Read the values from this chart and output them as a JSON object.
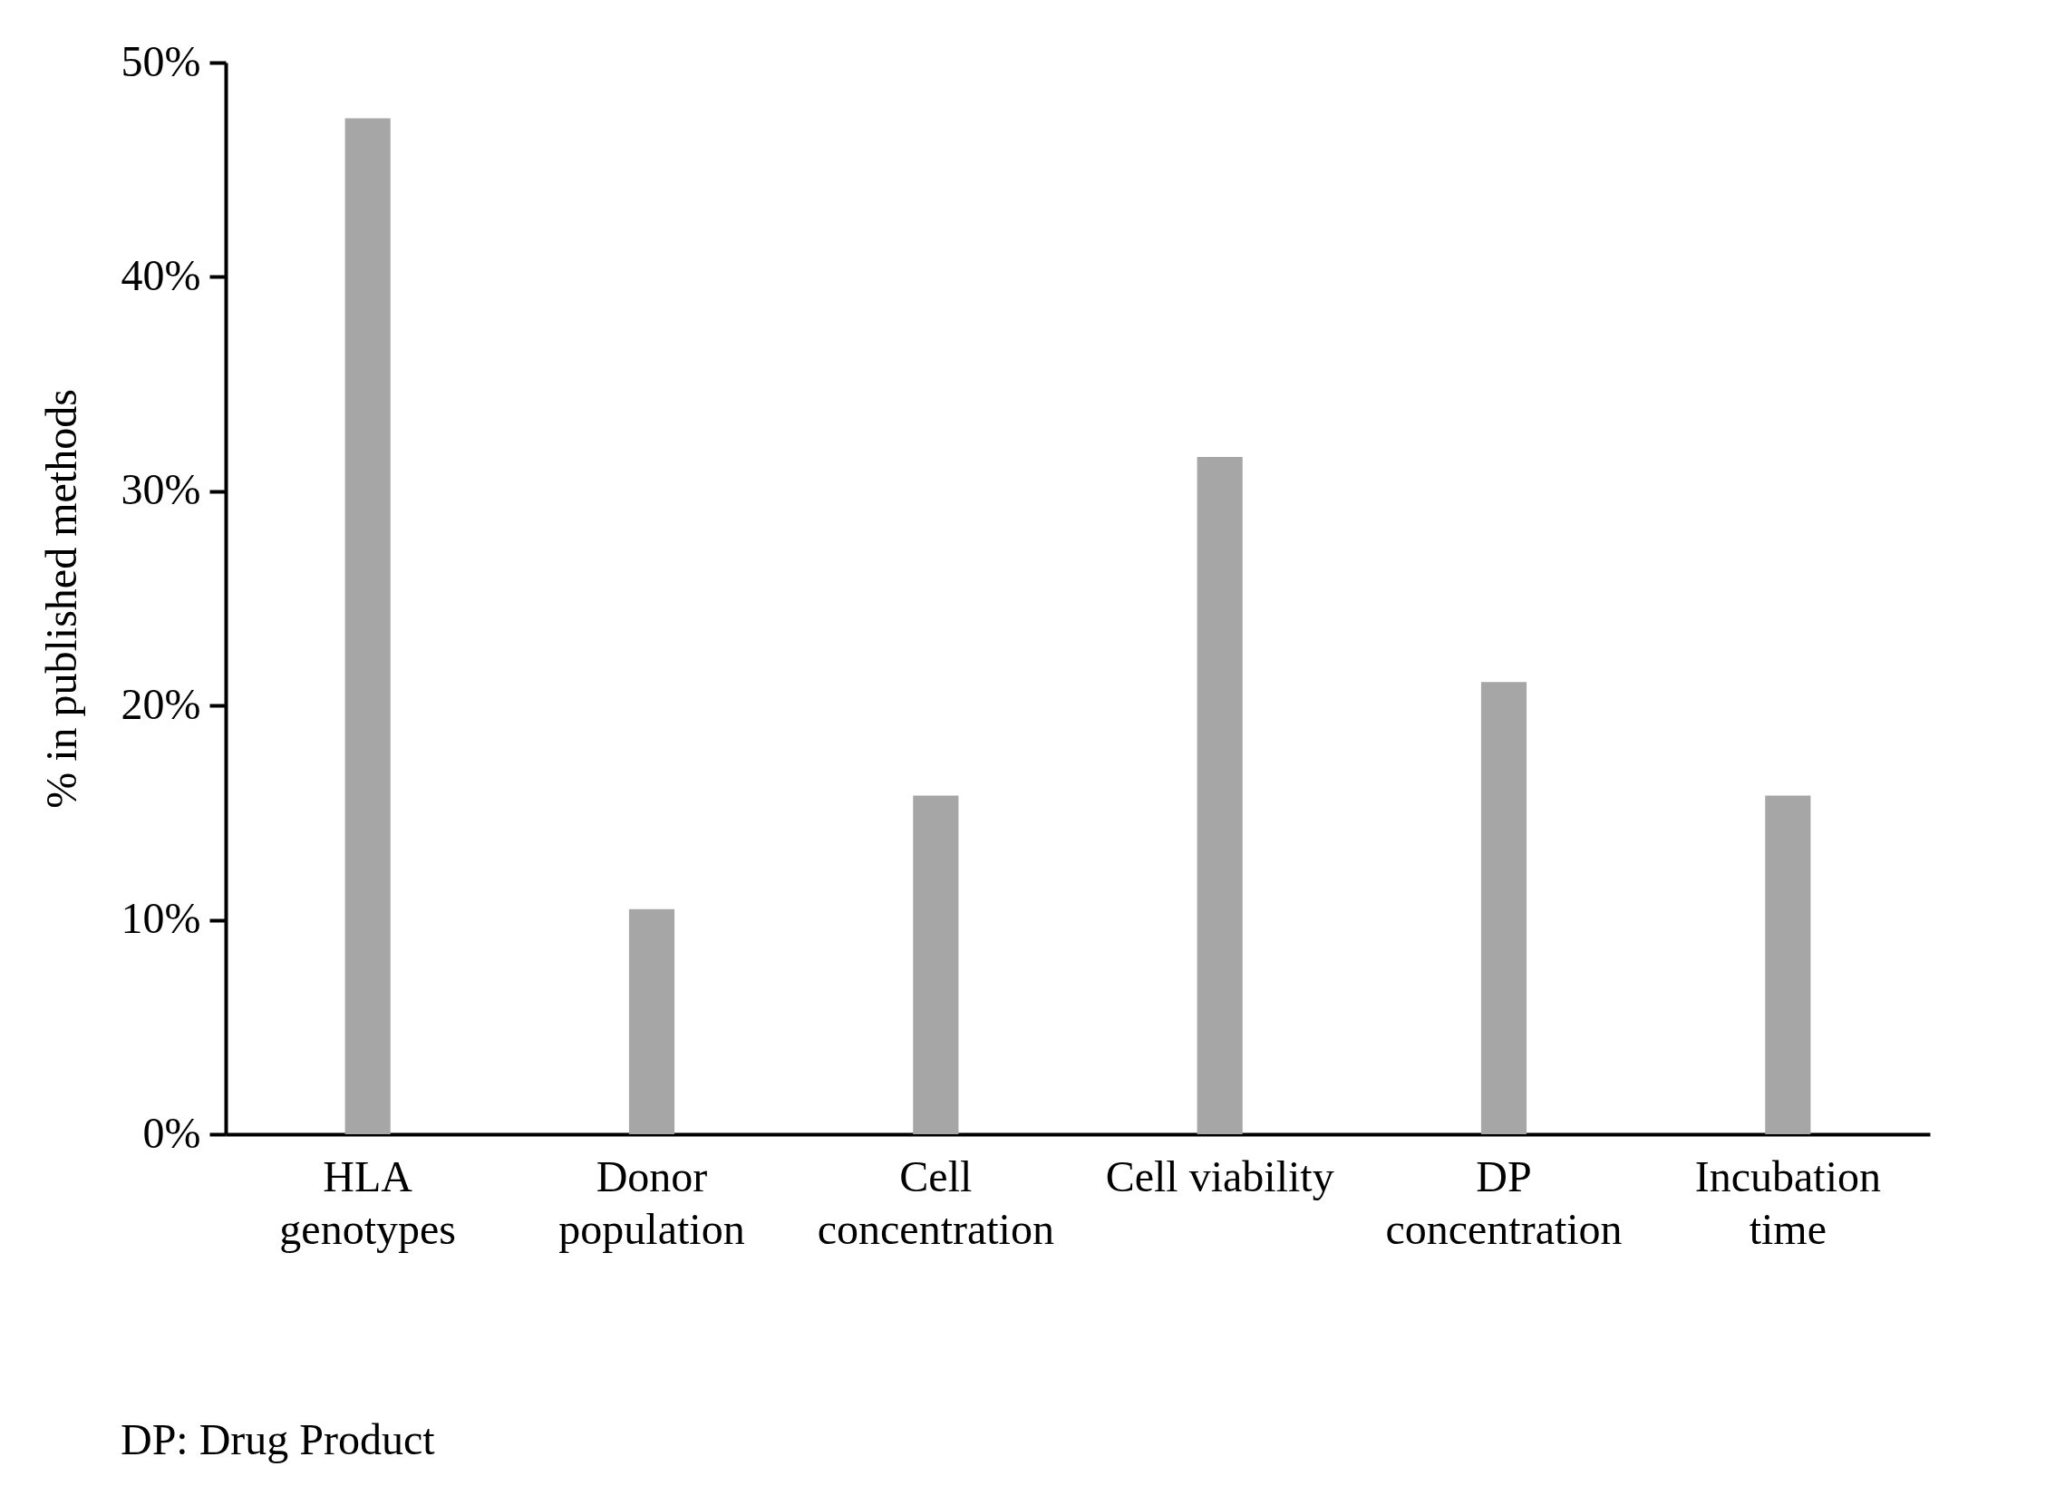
{
  "chart_data": {
    "type": "bar",
    "categories": [
      "HLA\ngenotypes",
      "Donor\npopulation",
      "Cell\nconcentration",
      "Cell viability",
      "DP\nconcentration",
      "Incubation\ntime"
    ],
    "values": [
      47.4,
      10.5,
      15.8,
      31.6,
      21.1,
      15.8
    ],
    "color": "#a6a6a6",
    "ylabel": "% in published methods",
    "ylim": [
      0,
      50
    ],
    "yticks": [
      {
        "value": 0,
        "label": "0%"
      },
      {
        "value": 10,
        "label": "10%"
      },
      {
        "value": 20,
        "label": "20%"
      },
      {
        "value": 30,
        "label": "30%"
      },
      {
        "value": 40,
        "label": "40%"
      },
      {
        "value": 50,
        "label": "50%"
      }
    ],
    "grid": false,
    "annotations": [
      "DP: Drug Product"
    ]
  }
}
